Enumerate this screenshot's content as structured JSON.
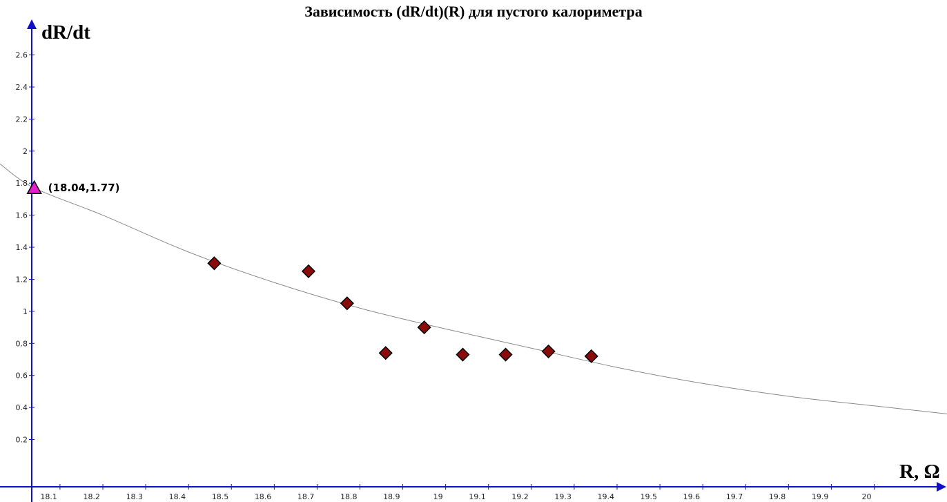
{
  "chart_data": {
    "type": "scatter",
    "title": "Зависимость (dR/dt)(R) для пустого калориметра",
    "xlabel": "R, Ω",
    "ylabel": "dR/dt",
    "xlim": [
      17.96,
      20.17
    ],
    "ylim": [
      -0.19,
      2.9
    ],
    "x_ticks": [
      "18.1",
      "18.2",
      "18.3",
      "18.4",
      "18.5",
      "18.6",
      "18.7",
      "18.8",
      "18.9",
      "19",
      "19.1",
      "19.2",
      "19.3",
      "19.4",
      "19.5",
      "19.6",
      "19.7",
      "19.8",
      "19.9",
      "20"
    ],
    "y_ticks": [
      "0.2",
      "0.4",
      "0.6",
      "0.8",
      "1",
      "1.2",
      "1.4",
      "1.6",
      "1.8",
      "2",
      "2.2",
      "2.4",
      "2.6"
    ],
    "grid": false,
    "series": [
      {
        "marker": "diamond",
        "color": "#8b0a0a",
        "points": [
          {
            "x": 18.46,
            "y": 1.3
          },
          {
            "x": 18.68,
            "y": 1.25
          },
          {
            "x": 18.77,
            "y": 1.05
          },
          {
            "x": 18.86,
            "y": 0.74
          },
          {
            "x": 18.95,
            "y": 0.9
          },
          {
            "x": 19.04,
            "y": 0.73
          },
          {
            "x": 19.14,
            "y": 0.73
          },
          {
            "x": 19.24,
            "y": 0.75
          },
          {
            "x": 19.34,
            "y": 0.72
          }
        ]
      },
      {
        "marker": "triangle",
        "color": "#e81ccf",
        "points": [
          {
            "x": 18.04,
            "y": 1.77,
            "label": "(18.04,1.77)"
          }
        ]
      }
    ],
    "fit_curve": {
      "color": "#8a8a8a",
      "points": [
        {
          "x": 17.96,
          "y": 1.92
        },
        {
          "x": 18.04,
          "y": 1.77
        },
        {
          "x": 18.2,
          "y": 1.6
        },
        {
          "x": 18.4,
          "y": 1.37
        },
        {
          "x": 18.6,
          "y": 1.18
        },
        {
          "x": 18.8,
          "y": 1.02
        },
        {
          "x": 19.0,
          "y": 0.89
        },
        {
          "x": 19.2,
          "y": 0.77
        },
        {
          "x": 19.4,
          "y": 0.65
        },
        {
          "x": 19.6,
          "y": 0.55
        },
        {
          "x": 19.8,
          "y": 0.47
        },
        {
          "x": 20.0,
          "y": 0.41
        },
        {
          "x": 20.17,
          "y": 0.36
        }
      ]
    },
    "axis_color": "#1010c8"
  }
}
